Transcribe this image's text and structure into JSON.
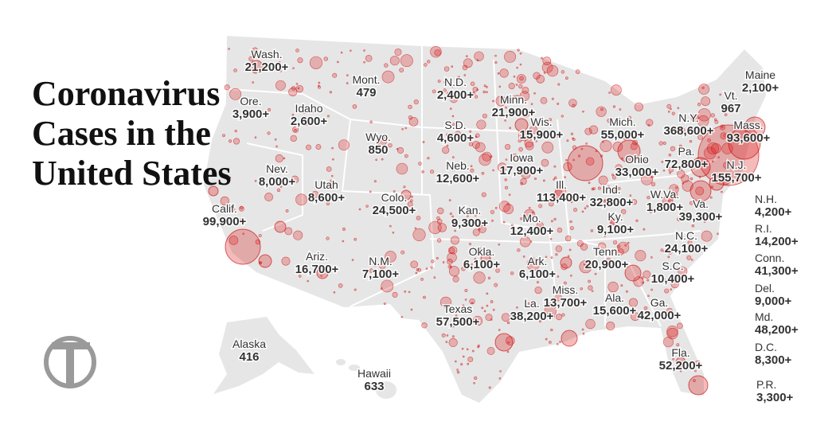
{
  "title_lines": [
    "Coronavirus",
    "Cases in the",
    "United States"
  ],
  "states": [
    {
      "name": "Wash.",
      "cases": "21,200+"
    },
    {
      "name": "Mont.",
      "cases": "479"
    },
    {
      "name": "N.D.",
      "cases": "2,400+"
    },
    {
      "name": "Minn.",
      "cases": "21,900+"
    },
    {
      "name": "Maine",
      "cases": "2,100+"
    },
    {
      "name": "Vt.",
      "cases": "967"
    },
    {
      "name": "Ore.",
      "cases": "3,900+"
    },
    {
      "name": "Idaho",
      "cases": "2,600+"
    },
    {
      "name": "Mich.",
      "cases": "55,000+"
    },
    {
      "name": "N.Y.",
      "cases": "368,600+"
    },
    {
      "name": "Mass.",
      "cases": "93,600+"
    },
    {
      "name": "S.D.",
      "cases": "4,600+"
    },
    {
      "name": "Wis.",
      "cases": "15,900+"
    },
    {
      "name": "Wyo.",
      "cases": "850"
    },
    {
      "name": "Pa.",
      "cases": "72,800+"
    },
    {
      "name": "Ohio",
      "cases": "33,000+"
    },
    {
      "name": "Iowa",
      "cases": "17,900+"
    },
    {
      "name": "Neb.",
      "cases": "12,600+"
    },
    {
      "name": "Nev.",
      "cases": "8,000+"
    },
    {
      "name": "N.J.",
      "cases": "155,700+"
    },
    {
      "name": "Utah",
      "cases": "8,600+"
    },
    {
      "name": "Ill.",
      "cases": "113,400+"
    },
    {
      "name": "Ind.",
      "cases": "32,800+"
    },
    {
      "name": "Colo.",
      "cases": "24,500+"
    },
    {
      "name": "W.Va.",
      "cases": "1,800+"
    },
    {
      "name": "Va.",
      "cases": "39,300+"
    },
    {
      "name": "N.H.",
      "cases": "4,200+"
    },
    {
      "name": "Calif.",
      "cases": "99,900+"
    },
    {
      "name": "Kan.",
      "cases": "9,300+"
    },
    {
      "name": "Ky.",
      "cases": "9,100+"
    },
    {
      "name": "Mo.",
      "cases": "12,400+"
    },
    {
      "name": "R.I.",
      "cases": "14,200+"
    },
    {
      "name": "N.C.",
      "cases": "24,100+"
    },
    {
      "name": "Okla.",
      "cases": "6,100+"
    },
    {
      "name": "Ariz.",
      "cases": "16,700+"
    },
    {
      "name": "N.M.",
      "cases": "7,100+"
    },
    {
      "name": "Tenn.",
      "cases": "20,900+"
    },
    {
      "name": "Conn.",
      "cases": "41,300+"
    },
    {
      "name": "Ark.",
      "cases": "6,100+"
    },
    {
      "name": "S.C.",
      "cases": "10,400+"
    },
    {
      "name": "Miss.",
      "cases": "13,700+"
    },
    {
      "name": "Del.",
      "cases": "9,000+"
    },
    {
      "name": "Ala.",
      "cases": "15,600+"
    },
    {
      "name": "La.",
      "cases": "38,200+"
    },
    {
      "name": "Ga.",
      "cases": "42,000+"
    },
    {
      "name": "Texas",
      "cases": "57,500+"
    },
    {
      "name": "Md.",
      "cases": "48,200+"
    },
    {
      "name": "Alaska",
      "cases": "416"
    },
    {
      "name": "D.C.",
      "cases": "8,300+"
    },
    {
      "name": "Fla.",
      "cases": "52,200+"
    },
    {
      "name": "Hawaii",
      "cases": "633"
    },
    {
      "name": "P.R.",
      "cases": "3,300+"
    }
  ]
}
